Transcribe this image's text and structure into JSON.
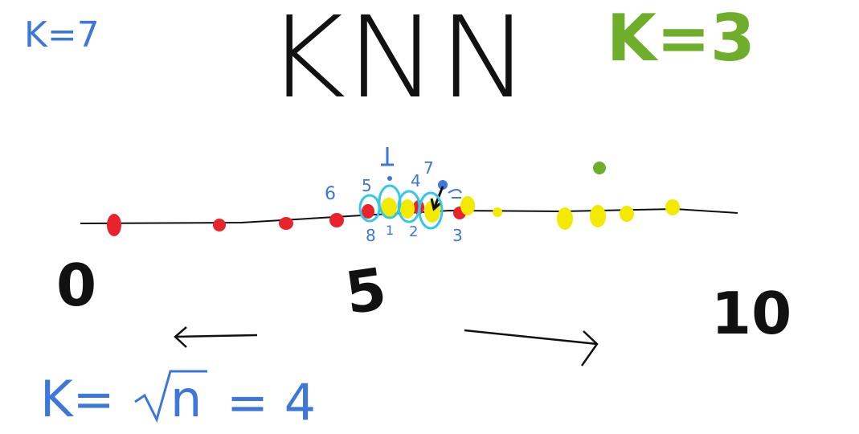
{
  "title": "KNN",
  "annotations": {
    "k_top_left": "K=7",
    "k_top_right": "K=3",
    "k_formula_prefix": "K=",
    "k_formula_n": "n",
    "k_formula_result": "= 4"
  },
  "axis": {
    "min_label": "0",
    "mid_label": "5",
    "max_label": "10"
  },
  "neighbor_labels_above": [
    "6",
    "5",
    "1",
    "4",
    "7"
  ],
  "neighbor_labels_below": [
    "8",
    "1",
    "2",
    "3"
  ],
  "colors": {
    "title": "#111111",
    "blue": "#3d78d8",
    "green": "#6fae2a",
    "red": "#e8232b",
    "yellow": "#f3ea00",
    "cyan": "#34c8e8",
    "black": "#111111"
  }
}
